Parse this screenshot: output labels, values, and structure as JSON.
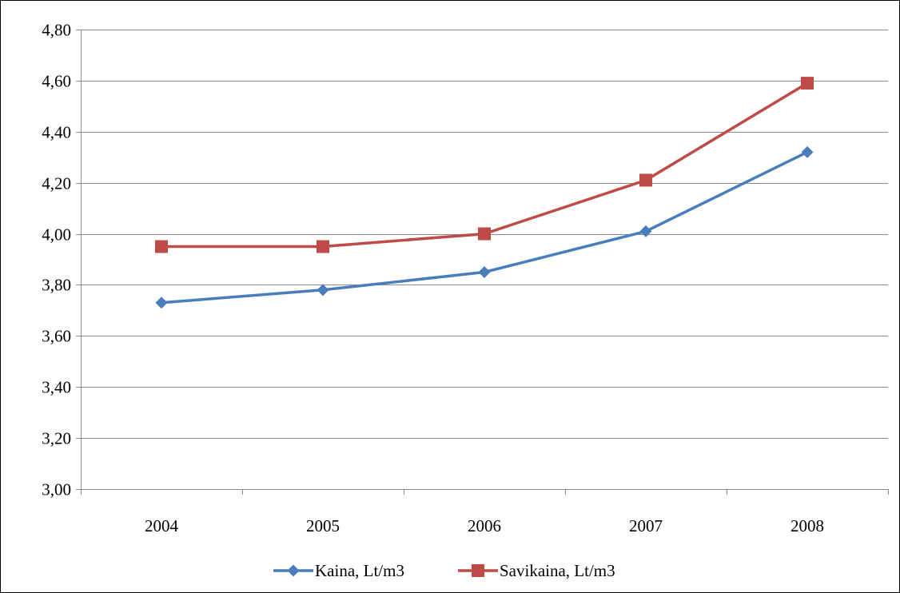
{
  "chart_data": {
    "type": "line",
    "title": "",
    "xlabel": "",
    "ylabel": "",
    "categories": [
      "2004",
      "2005",
      "2006",
      "2007",
      "2008"
    ],
    "y_ticks": [
      "3,00",
      "3,20",
      "3,40",
      "3,60",
      "3,80",
      "4,00",
      "4,20",
      "4,40",
      "4,60",
      "4,80"
    ],
    "ylim": [
      3.0,
      4.8
    ],
    "y_step": 0.2,
    "grid": true,
    "legend_position": "bottom",
    "series": [
      {
        "name": "Kaina, Lt/m3",
        "values": [
          3.73,
          3.78,
          3.85,
          4.01,
          4.32
        ],
        "color": "#4A7EBB",
        "marker": "diamond"
      },
      {
        "name": "Savikaina, Lt/m3",
        "values": [
          3.95,
          3.95,
          4.0,
          4.21,
          4.59
        ],
        "color": "#BE4B48",
        "marker": "square"
      }
    ]
  }
}
